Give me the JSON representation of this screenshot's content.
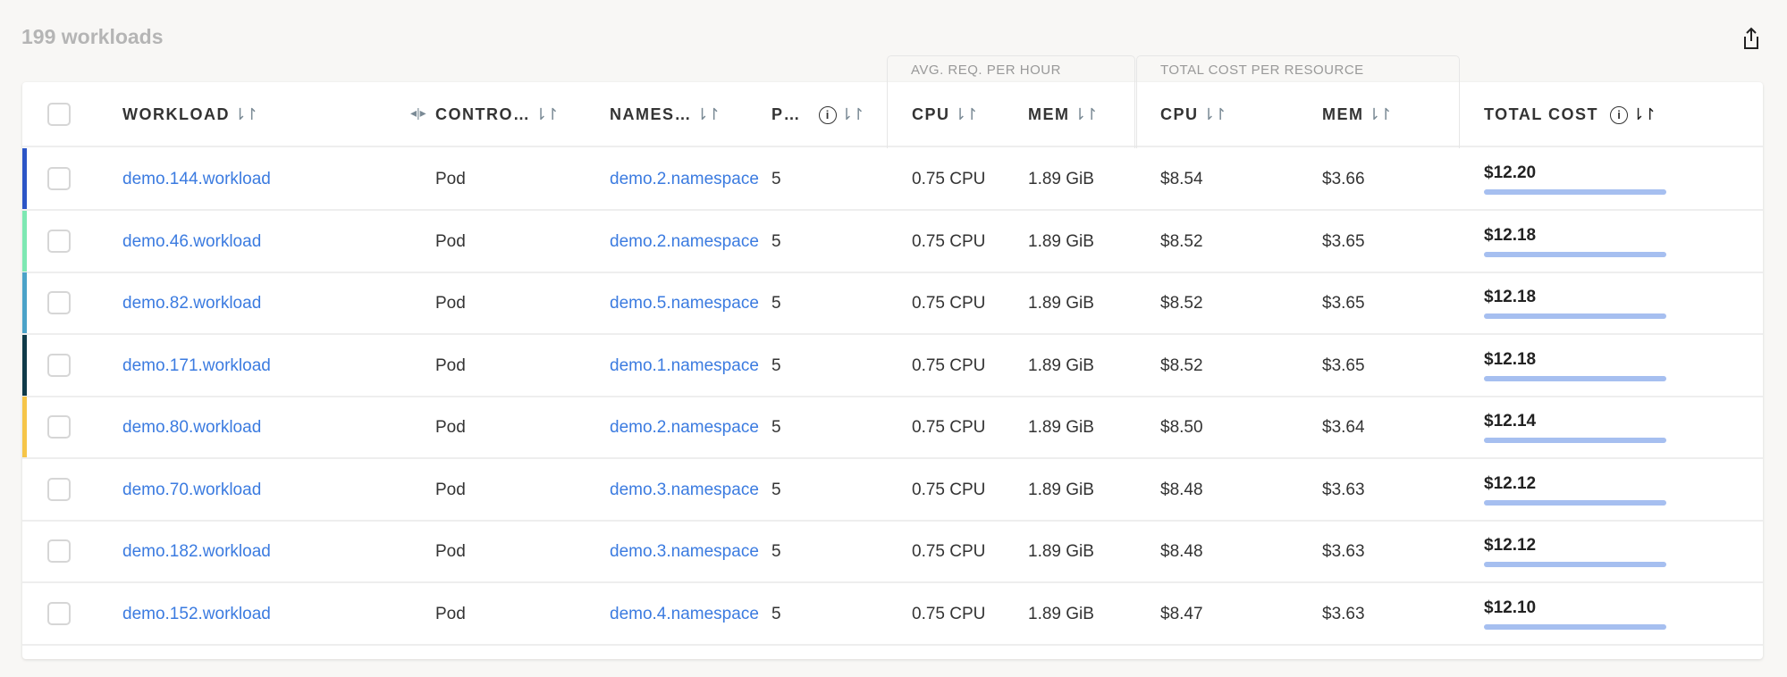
{
  "title": "199 workloads",
  "export_icon": "share-export-icon",
  "groups": {
    "avg_req": "AVG. REQ. PER HOUR",
    "total_cost_per_resource": "TOTAL COST PER RESOURCE"
  },
  "columns": {
    "workload": "WORKLOAD",
    "controller": "CONTRO…",
    "namespace": "NAMES…",
    "pods": "P…",
    "cpu": "CPU",
    "mem": "MEM",
    "cost_cpu": "CPU",
    "cost_mem": "MEM",
    "total_cost": "TOTAL COST"
  },
  "sort_icon": "⇂↾",
  "info_icon": "i",
  "rows": [
    {
      "workload": "demo.144.workload",
      "controller": "Pod",
      "namespace": "demo.2.namespace",
      "pods": "5",
      "cpu": "0.75 CPU",
      "mem": "1.89 GiB",
      "cost_cpu": "$8.54",
      "cost_mem": "$3.66",
      "total": "$12.20",
      "bar_pct": 100,
      "color": "#2b55c6"
    },
    {
      "workload": "demo.46.workload",
      "controller": "Pod",
      "namespace": "demo.2.namespace",
      "pods": "5",
      "cpu": "0.75 CPU",
      "mem": "1.89 GiB",
      "cost_cpu": "$8.52",
      "cost_mem": "$3.65",
      "total": "$12.18",
      "bar_pct": 100,
      "color": "#7de8b2"
    },
    {
      "workload": "demo.82.workload",
      "controller": "Pod",
      "namespace": "demo.5.namespace",
      "pods": "5",
      "cpu": "0.75 CPU",
      "mem": "1.89 GiB",
      "cost_cpu": "$8.52",
      "cost_mem": "$3.65",
      "total": "$12.18",
      "bar_pct": 100,
      "color": "#4aa2c8"
    },
    {
      "workload": "demo.171.workload",
      "controller": "Pod",
      "namespace": "demo.1.namespace",
      "pods": "5",
      "cpu": "0.75 CPU",
      "mem": "1.89 GiB",
      "cost_cpu": "$8.52",
      "cost_mem": "$3.65",
      "total": "$12.18",
      "bar_pct": 100,
      "color": "#0f3a48"
    },
    {
      "workload": "demo.80.workload",
      "controller": "Pod",
      "namespace": "demo.2.namespace",
      "pods": "5",
      "cpu": "0.75 CPU",
      "mem": "1.89 GiB",
      "cost_cpu": "$8.50",
      "cost_mem": "$3.64",
      "total": "$12.14",
      "bar_pct": 100,
      "color": "#f6c548"
    },
    {
      "workload": "demo.70.workload",
      "controller": "Pod",
      "namespace": "demo.3.namespace",
      "pods": "5",
      "cpu": "0.75 CPU",
      "mem": "1.89 GiB",
      "cost_cpu": "$8.48",
      "cost_mem": "$3.63",
      "total": "$12.12",
      "bar_pct": 100,
      "color": ""
    },
    {
      "workload": "demo.182.workload",
      "controller": "Pod",
      "namespace": "demo.3.namespace",
      "pods": "5",
      "cpu": "0.75 CPU",
      "mem": "1.89 GiB",
      "cost_cpu": "$8.48",
      "cost_mem": "$3.63",
      "total": "$12.12",
      "bar_pct": 100,
      "color": ""
    },
    {
      "workload": "demo.152.workload",
      "controller": "Pod",
      "namespace": "demo.4.namespace",
      "pods": "5",
      "cpu": "0.75 CPU",
      "mem": "1.89 GiB",
      "cost_cpu": "$8.47",
      "cost_mem": "$3.63",
      "total": "$12.10",
      "bar_pct": 100,
      "color": ""
    }
  ]
}
